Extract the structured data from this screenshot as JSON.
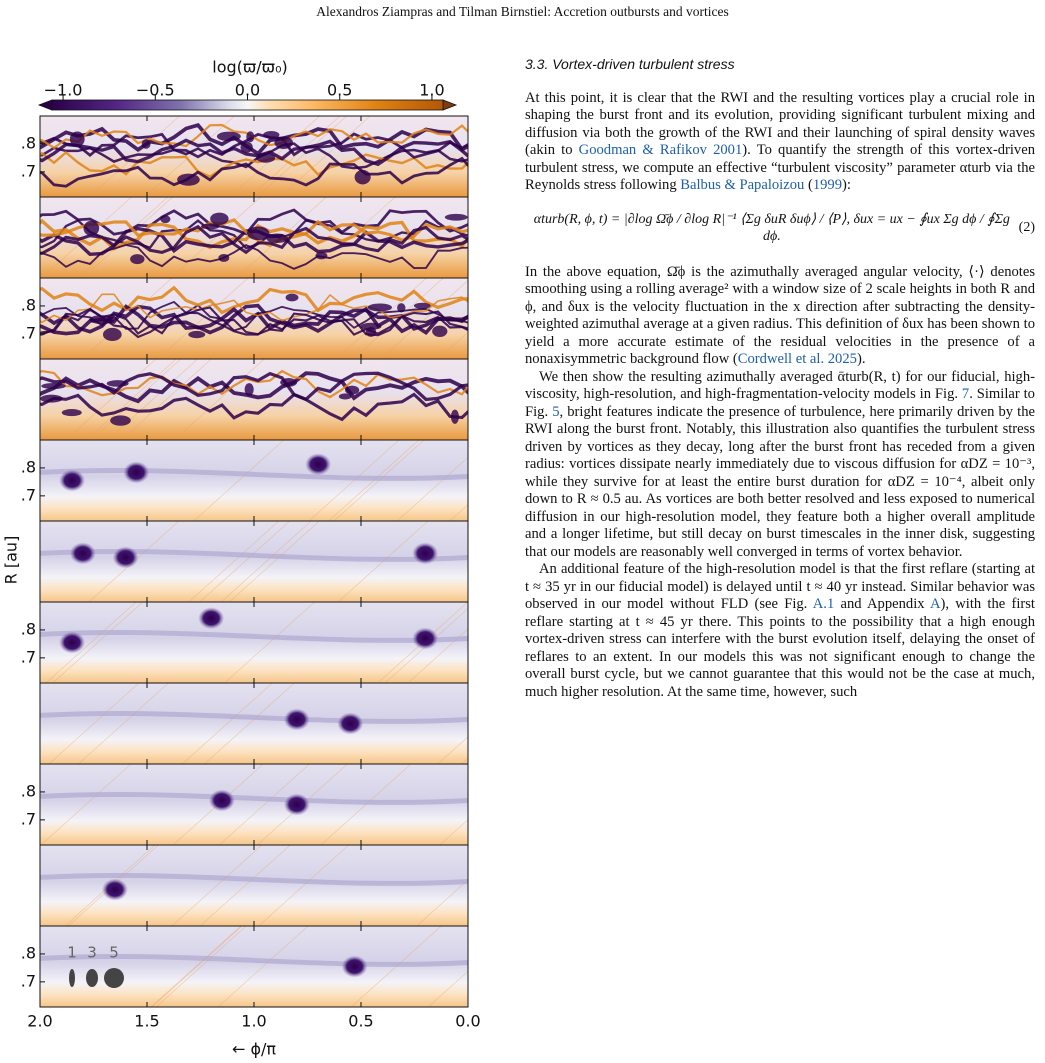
{
  "header": "Alexandros Ziampras and Tilman Birnstiel: Accretion outbursts and vortices",
  "figure": {
    "colorbar": {
      "label": "log(ϖ/ϖ₀)",
      "lim": [
        -1.06,
        1.06
      ],
      "ticks": [
        {
          "value": -1,
          "label": "−1.0"
        },
        {
          "value": -0.5,
          "label": "−0.5"
        },
        {
          "value": 0,
          "label": "0.0"
        },
        {
          "value": 0.5,
          "label": "0.5"
        },
        {
          "value": 1,
          "label": "1.0"
        }
      ]
    },
    "xlim": [
      2,
      0
    ],
    "xticks": [
      {
        "value": 2,
        "label": "2.0"
      },
      {
        "value": 1.5,
        "label": "1.5"
      },
      {
        "value": 1,
        "label": "1.0"
      },
      {
        "value": 0.5,
        "label": "0.5"
      },
      {
        "value": 0,
        "label": "0.0"
      }
    ],
    "ylim": [
      0.61,
      0.9
    ],
    "yticks": [
      {
        "value": 0.8,
        "label": ".8"
      },
      {
        "value": 0.7,
        "label": ".7"
      }
    ],
    "xlabel": "← ϕ/π",
    "ylabel": "R [au]",
    "marker_labels": [
      "1",
      "3",
      "5"
    ]
  },
  "section": {
    "title": "3.3. Vortex-driven turbulent stress",
    "blocks": [
      {
        "paragraph": [
          "At this point, it is clear that the RWI and the resulting vortices play a crucial role in shaping the burst front and its evolution, providing significant turbulent mixing and diffusion via both the growth of the RWI and their launching of spiral density waves (akin to ",
          {
            "link": "Goodman & Rafikov 2001"
          },
          "). To quantify the strength of this vortex-driven turbulent stress, we compute an effective “turbulent viscosity” parameter αturb via the Reynolds stress following ",
          {
            "link": "Balbus & Papaloizou"
          },
          " (",
          {
            "link": "1999"
          },
          "):"
        ]
      },
      {
        "equation": "αturb(R, ϕ, t) = |∂log Ω̄ϕ / ∂log R|⁻¹ ⟨Σg δuR δuϕ⟩ / ⟨P⟩,   δux = ux − ∮ux Σg dϕ / ∮Σg dϕ.",
        "number": "(2)"
      },
      {
        "paragraph": [
          "In the above equation, Ω̄ϕ is the azimuthally averaged angular velocity, ⟨·⟩ denotes smoothing using a rolling average² with a window size of 2 scale heights in both R and ϕ, and δux is the velocity fluctuation in the x direction after subtracting the density-weighted azimuthal average at a given radius. This definition of δux has been shown to yield a more accurate estimate of the residual velocities in the presence of a nonaxisymmetric background flow (",
          {
            "link": "Cordwell et al. 2025"
          },
          ")."
        ]
      },
      {
        "paragraph": [
          "We then show the resulting azimuthally averaged ᾱturb(R, t) for our fiducial, high-viscosity, high-resolution, and high-fragmentation-velocity models in Fig. ",
          {
            "link": "7"
          },
          ". Similar to Fig. ",
          {
            "link": "5"
          },
          ", bright features indicate the presence of turbulence, here primarily driven by the RWI along the burst front. Notably, this illustration also quantifies the turbulent stress driven by vortices as they decay, long after the burst front has receded from a given radius: vortices dissipate nearly immediately due to viscous diffusion for αDZ = 10⁻³, while they survive for at least the entire burst duration for αDZ = 10⁻⁴, albeit only down to R ≈ 0.5 au. As vortices are both better resolved and less exposed to numerical diffusion in our high-resolution model, they feature both a higher overall amplitude and a longer lifetime, but still decay on burst timescales in the inner disk, suggesting that our models are reasonably well converged in terms of vortex behavior."
        ]
      },
      {
        "paragraph": [
          "An additional feature of the high-resolution model is that the first reflare (starting at t ≈ 35 yr in our fiducial model) is delayed until t ≈ 40 yr instead. Similar behavior was observed in our model without FLD (see Fig. ",
          {
            "link": "A.1"
          },
          " and Appendix ",
          {
            "link": "A"
          },
          "), with the first reflare starting at t ≈ 45 yr there. This points to the possibility that a high enough vortex-driven stress can interfere with the burst evolution itself, delaying the onset of reflares to an extent. In our models this was not significant enough to change the overall burst cycle, but we cannot guarantee that this would not be the case at much, much higher resolution. At the same time, however, such"
        ]
      }
    ]
  }
}
